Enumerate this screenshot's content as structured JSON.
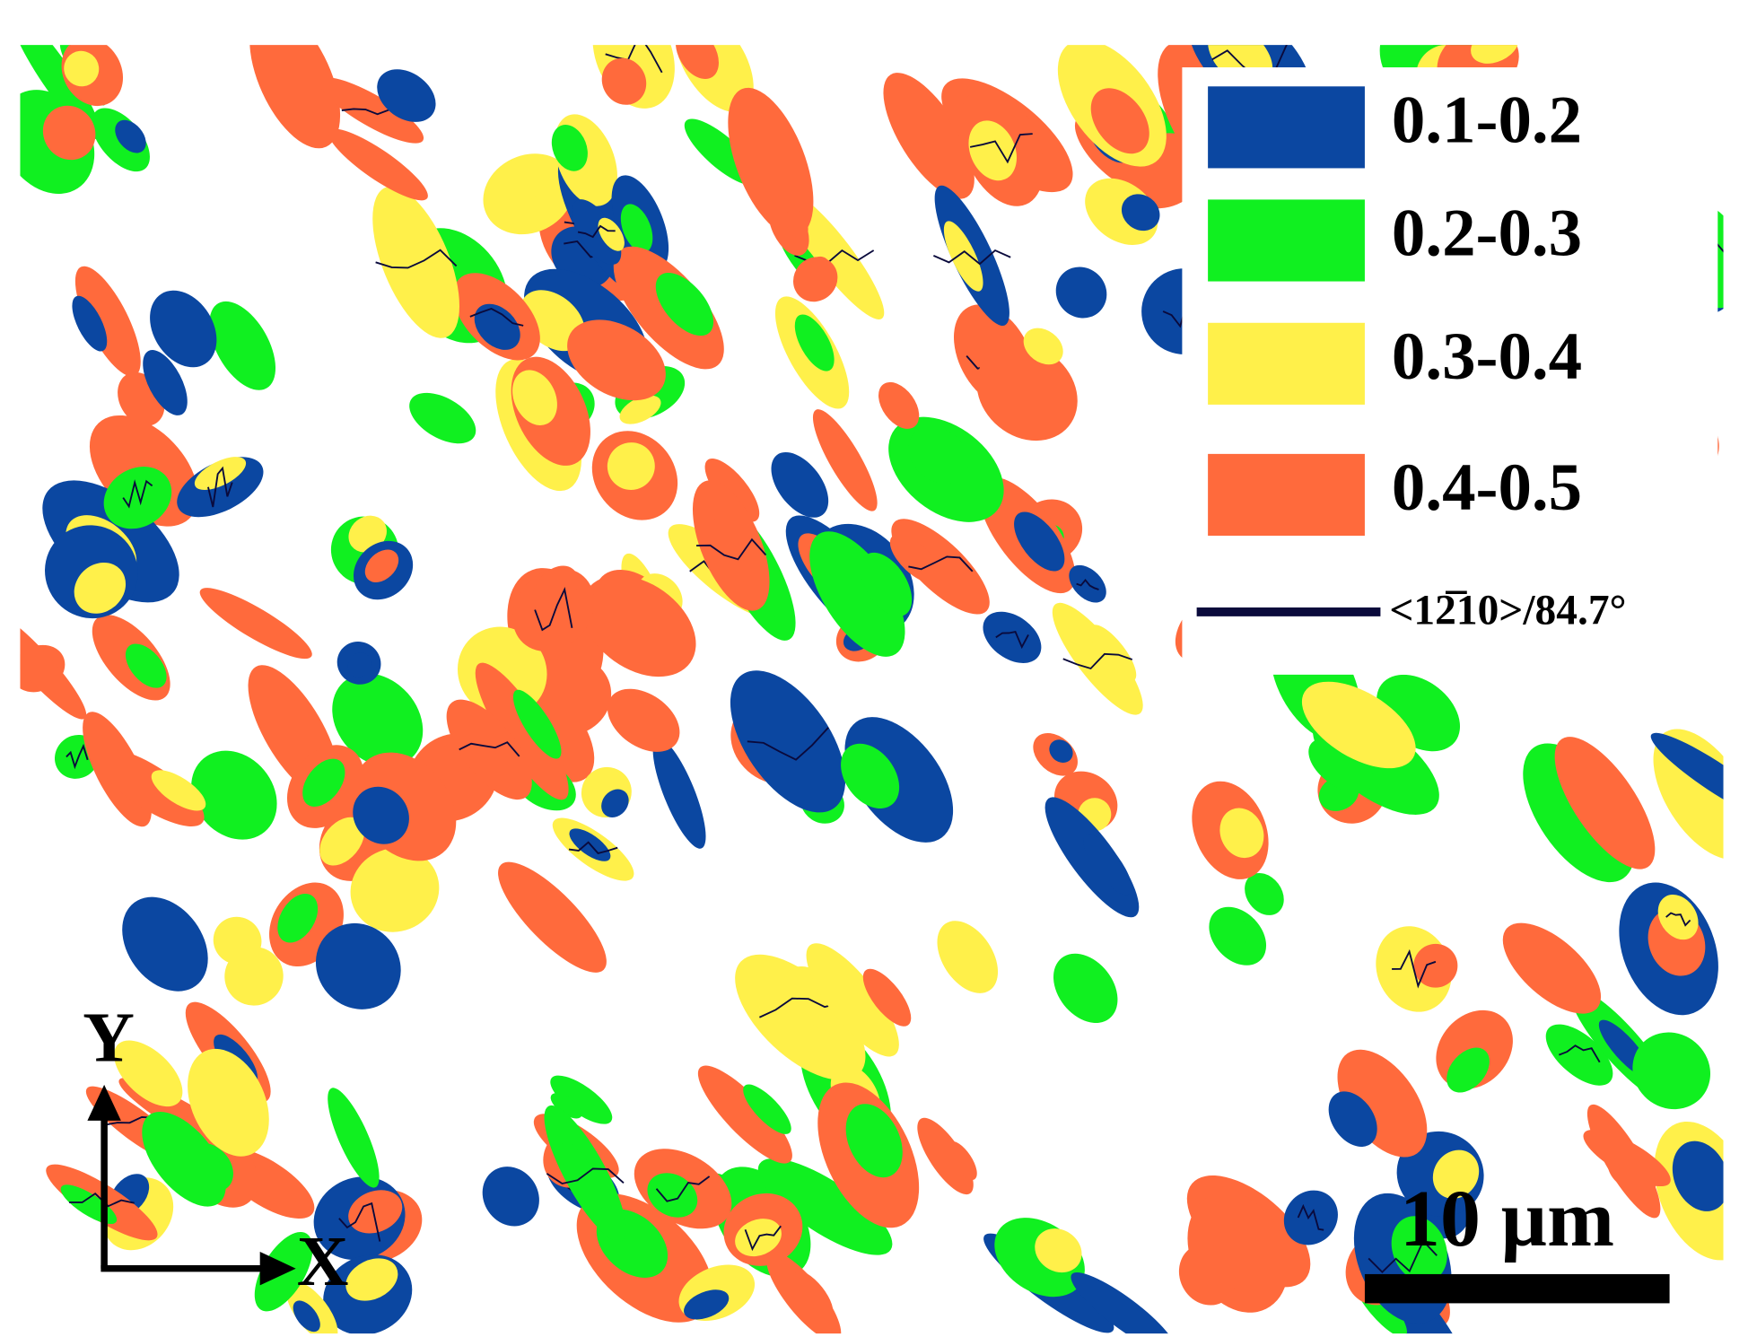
{
  "legend": {
    "items": [
      {
        "label": "0.1-0.2",
        "color": "#0b47a1"
      },
      {
        "label": "0.2-0.3",
        "color": "#10f020"
      },
      {
        "label": "0.3-0.4",
        "color": "#fff04a"
      },
      {
        "label": "0.4-0.5",
        "color": "#ff6a3c"
      }
    ],
    "boundary": {
      "label": "<12̅10>/84.7°",
      "color": "#0a0a3c"
    }
  },
  "axes": {
    "y": "Y",
    "x": "X"
  },
  "scale_bar": {
    "label": "10 µm"
  }
}
